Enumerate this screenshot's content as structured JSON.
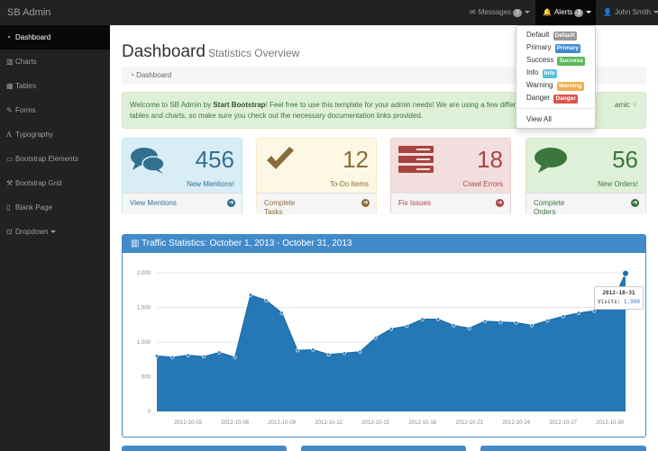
{
  "brand": "SB Admin",
  "topnav": {
    "messages_label": "Messages",
    "messages_badge": "7",
    "alerts_label": "Alerts",
    "alerts_badge": "3",
    "user_label": "John Smith"
  },
  "sidebar": {
    "items": [
      {
        "label": "Dashboard",
        "icon": "dashboard-icon"
      },
      {
        "label": "Charts",
        "icon": "bar-chart-icon"
      },
      {
        "label": "Tables",
        "icon": "table-icon"
      },
      {
        "label": "Forms",
        "icon": "edit-icon"
      },
      {
        "label": "Typography",
        "icon": "font-icon"
      },
      {
        "label": "Bootstrap Elements",
        "icon": "desktop-icon"
      },
      {
        "label": "Bootstrap Grid",
        "icon": "wrench-icon"
      },
      {
        "label": "Blank Page",
        "icon": "file-icon"
      },
      {
        "label": "Dropdown",
        "icon": "caret-square-icon"
      }
    ]
  },
  "page": {
    "title": "Dashboard",
    "subtitle": "Statistics Overview",
    "breadcrumb": "Dashboard"
  },
  "alert": {
    "text_pre": "Welcome to SB Admin by ",
    "text_bold": "Start Bootstrap",
    "text_mid": "! Feel free to use this template for your admin needs! We are using a few different p",
    "text_end": "amic",
    "line2": "tables and charts, so make sure you check out the necessary documentation links provided.",
    "close": "×"
  },
  "panels": [
    {
      "number": "456",
      "label": "New Mentions!",
      "footer": "View Mentions",
      "color": "#31708f"
    },
    {
      "number": "12",
      "label": "To-Do Items",
      "footer": "Complete Tasks",
      "color": "#8a6d3b"
    },
    {
      "number": "18",
      "label": "Crawl Errors",
      "footer": "Fix Issues",
      "color": "#a94442"
    },
    {
      "number": "56",
      "label": "New Orders!",
      "footer": "Complete Orders",
      "color": "#3c763d"
    }
  ],
  "alerts_dropdown": {
    "items": [
      {
        "text": "Default",
        "label": "Default",
        "color": "#999999"
      },
      {
        "text": "Primary",
        "label": "Primary",
        "color": "#428bca"
      },
      {
        "text": "Success",
        "label": "Success",
        "color": "#5cb85c"
      },
      {
        "text": "Info",
        "label": "Info",
        "color": "#5bc0de"
      },
      {
        "text": "Warning",
        "label": "Warning",
        "color": "#f0ad4e"
      },
      {
        "text": "Danger",
        "label": "Danger",
        "color": "#d9534f"
      }
    ],
    "view_all": "View All"
  },
  "chart_panel": {
    "title": "Traffic Statistics: October 1, 2013 - October 31, 2013"
  },
  "tooltip": {
    "date": "2012-10-31",
    "series": "Visits",
    "value": "1,990"
  },
  "chart_data": {
    "type": "area",
    "xlabel": "",
    "ylabel": "",
    "ylim": [
      0,
      2000
    ],
    "y_ticks": [
      "0",
      "500",
      "1,000",
      "1,500",
      "2,000"
    ],
    "x_tick_labels": [
      "2012-10-03",
      "2012-10-06",
      "2012-10-09",
      "2012-10-12",
      "2012-10-15",
      "2012-10-18",
      "2012-10-21",
      "2012-10-24",
      "2012-10-27",
      "2012-10-30"
    ],
    "grid": true,
    "legend": "none",
    "color": "#2577b5",
    "series": [
      {
        "name": "Visits",
        "x": [
          "2012-10-01",
          "2012-10-02",
          "2012-10-03",
          "2012-10-04",
          "2012-10-05",
          "2012-10-06",
          "2012-10-07",
          "2012-10-08",
          "2012-10-09",
          "2012-10-10",
          "2012-10-11",
          "2012-10-12",
          "2012-10-13",
          "2012-10-14",
          "2012-10-15",
          "2012-10-16",
          "2012-10-17",
          "2012-10-18",
          "2012-10-19",
          "2012-10-20",
          "2012-10-21",
          "2012-10-22",
          "2012-10-23",
          "2012-10-24",
          "2012-10-25",
          "2012-10-26",
          "2012-10-27",
          "2012-10-28",
          "2012-10-29",
          "2012-10-30",
          "2012-10-31"
        ],
        "values": [
          800,
          780,
          810,
          790,
          850,
          780,
          1680,
          1600,
          1420,
          880,
          890,
          820,
          840,
          860,
          1060,
          1190,
          1230,
          1330,
          1330,
          1240,
          1200,
          1300,
          1290,
          1280,
          1240,
          1310,
          1370,
          1420,
          1450,
          1500,
          1990
        ]
      }
    ]
  }
}
